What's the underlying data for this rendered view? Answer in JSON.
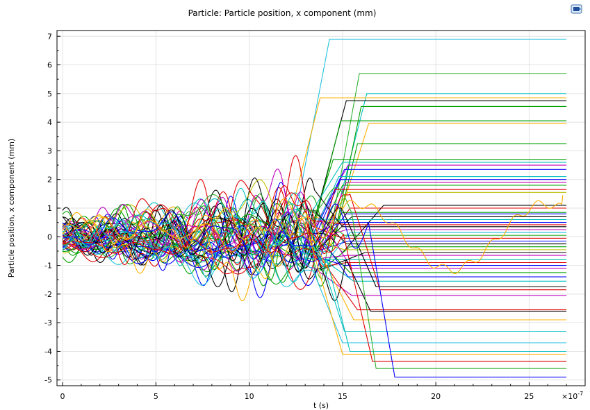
{
  "chart_data": {
    "type": "line",
    "title": "Particle: Particle position, x component (mm)",
    "xlabel": "t (s)",
    "ylabel": "Particle position, x component (mm)",
    "x_multiplier": "×10",
    "x_multiplier_exp": "-7",
    "xlim": [
      -0.3,
      28.0
    ],
    "ylim": [
      -5.2,
      7.2
    ],
    "xticks": [
      0,
      5,
      10,
      15,
      20,
      25
    ],
    "yticks": [
      -5,
      -4,
      -3,
      -2,
      -1,
      0,
      1,
      2,
      3,
      4,
      5,
      6,
      7
    ],
    "grid": true,
    "legend": "none",
    "t_end": 27,
    "series_colors": [
      "#0000ff",
      "#00a000",
      "#e00000",
      "#00bfbf",
      "#bf00bf",
      "#bfbf00",
      "#000000",
      "#ffb000",
      "#20c0e0",
      "#30b030"
    ],
    "series": [
      {
        "final_position": 6.9,
        "escape_time": 14.3,
        "color": "#20c0e0"
      },
      {
        "final_position": 5.7,
        "escape_time": 15.9,
        "color": "#30b030"
      },
      {
        "final_position": 5.0,
        "escape_time": 16.3,
        "color": "#00bfbf"
      },
      {
        "final_position": 4.85,
        "escape_time": 13.8,
        "color": "#ffb000"
      },
      {
        "final_position": 4.75,
        "escape_time": 15.2,
        "color": "#000000"
      },
      {
        "final_position": 4.55,
        "escape_time": 16.0,
        "color": "#00a000"
      },
      {
        "final_position": 4.05,
        "escape_time": 14.9,
        "color": "#00a000"
      },
      {
        "final_position": 3.95,
        "escape_time": 16.4,
        "color": "#ffb000"
      },
      {
        "final_position": 3.25,
        "escape_time": 15.8,
        "color": "#00a000"
      },
      {
        "final_position": 2.7,
        "escape_time": 14.5,
        "color": "#00a000"
      },
      {
        "final_position": 2.6,
        "escape_time": 15.0,
        "color": "#00bfbf"
      },
      {
        "final_position": 2.5,
        "escape_time": 15.3,
        "color": "#bf00bf"
      },
      {
        "final_position": 2.35,
        "escape_time": 15.1,
        "color": "#0000ff"
      },
      {
        "final_position": 2.1,
        "escape_time": 14.8,
        "color": "#00bfbf"
      },
      {
        "final_position": 2.0,
        "escape_time": 14.9,
        "color": "#0000ff"
      },
      {
        "final_position": 1.9,
        "escape_time": 15.2,
        "color": "#bf00bf"
      },
      {
        "final_position": 1.8,
        "escape_time": 15.0,
        "color": "#00a000"
      },
      {
        "final_position": 1.65,
        "escape_time": 14.6,
        "color": "#e00000"
      },
      {
        "final_position": 1.55,
        "escape_time": 15.3,
        "color": "#bfbf00"
      },
      {
        "final_position": 1.1,
        "escape_time": 17.2,
        "color": "#000000"
      },
      {
        "final_position": 1.0,
        "escape_time": 15.4,
        "color": "#e00000"
      },
      {
        "final_position": 0.85,
        "escape_time": 15.0,
        "color": "#00a000"
      },
      {
        "final_position": 0.8,
        "escape_time": 15.2,
        "color": "#0000ff"
      },
      {
        "final_position": 0.7,
        "escape_time": 15.5,
        "color": "#000000"
      },
      {
        "final_position": 0.6,
        "escape_time": 15.1,
        "color": "#00bfbf"
      },
      {
        "final_position": 0.5,
        "escape_time": 14.9,
        "color": "#0000ff"
      },
      {
        "final_position": 0.42,
        "escape_time": 15.3,
        "color": "#e00000"
      },
      {
        "final_position": 0.35,
        "escape_time": 15.0,
        "color": "#000000"
      },
      {
        "final_position": 0.25,
        "escape_time": 15.2,
        "color": "#bf00bf"
      },
      {
        "final_position": 0.15,
        "escape_time": 15.4,
        "color": "#20c0e0"
      },
      {
        "final_position": 0.05,
        "escape_time": 15.1,
        "color": "#30b030"
      },
      {
        "final_position": -0.05,
        "escape_time": 15.0,
        "color": "#e00000"
      },
      {
        "final_position": -0.15,
        "escape_time": 15.3,
        "color": "#0000ff"
      },
      {
        "final_position": -0.25,
        "escape_time": 15.2,
        "color": "#000000"
      },
      {
        "final_position": -0.35,
        "escape_time": 15.4,
        "color": "#00a000"
      },
      {
        "final_position": -0.45,
        "escape_time": 15.1,
        "color": "#bfbf00"
      },
      {
        "final_position": -0.55,
        "escape_time": 16.2,
        "color": "#000000"
      },
      {
        "final_position": -0.65,
        "escape_time": 15.3,
        "color": "#bf00bf"
      },
      {
        "final_position": -0.8,
        "escape_time": 15.0,
        "color": "#00bfbf"
      },
      {
        "final_position": -0.9,
        "escape_time": 15.2,
        "color": "#e00000"
      },
      {
        "final_position": -1.0,
        "escape_time": 15.1,
        "color": "#0000ff"
      },
      {
        "final_position": -1.1,
        "escape_time": 15.5,
        "color": "#bf00bf"
      },
      {
        "final_position": -1.25,
        "escape_time": 15.4,
        "color": "#00a000"
      },
      {
        "final_position": -1.4,
        "escape_time": 15.3,
        "color": "#0000ff"
      },
      {
        "final_position": -1.55,
        "escape_time": 15.6,
        "color": "#00bfbf"
      },
      {
        "final_position": -1.75,
        "escape_time": 16.8,
        "color": "#000000"
      },
      {
        "final_position": -1.85,
        "escape_time": 17.0,
        "color": "#e00000"
      },
      {
        "final_position": -2.05,
        "escape_time": 15.5,
        "color": "#bf00bf"
      },
      {
        "final_position": -2.55,
        "escape_time": 15.8,
        "color": "#e00000"
      },
      {
        "final_position": -2.6,
        "escape_time": 16.5,
        "color": "#000000"
      },
      {
        "final_position": -2.9,
        "escape_time": 15.6,
        "color": "#ffb000"
      },
      {
        "final_position": -3.3,
        "escape_time": 15.1,
        "color": "#00bfbf"
      },
      {
        "final_position": -3.7,
        "escape_time": 15.0,
        "color": "#20c0e0"
      },
      {
        "final_position": -4.0,
        "escape_time": 15.4,
        "color": "#00bfbf"
      },
      {
        "final_position": -4.1,
        "escape_time": 15.0,
        "color": "#ffb000"
      },
      {
        "final_position": -4.35,
        "escape_time": 16.6,
        "color": "#e00000"
      },
      {
        "final_position": -4.6,
        "escape_time": 16.8,
        "color": "#30b030"
      },
      {
        "final_position": -4.9,
        "escape_time": 17.8,
        "color": "#0000ff"
      }
    ],
    "oscillating_series": [
      {
        "color": "#ffb000",
        "t_start": 15.0,
        "t_end": 26.8,
        "end_value": 1.45
      }
    ]
  }
}
